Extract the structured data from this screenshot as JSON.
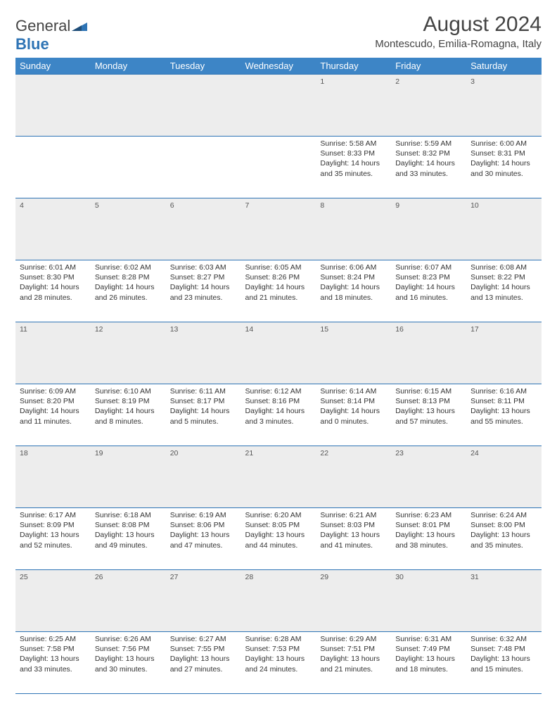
{
  "logo": {
    "part1": "General",
    "part2": "Blue"
  },
  "title": "August 2024",
  "location": "Montescudo, Emilia-Romagna, Italy",
  "header_bg": "#3d85c6",
  "columns": [
    "Sunday",
    "Monday",
    "Tuesday",
    "Wednesday",
    "Thursday",
    "Friday",
    "Saturday"
  ],
  "weeks": [
    {
      "nums": [
        "",
        "",
        "",
        "",
        "1",
        "2",
        "3"
      ],
      "cells": [
        "",
        "",
        "",
        "",
        "Sunrise: 5:58 AM\nSunset: 8:33 PM\nDaylight: 14 hours\nand 35 minutes.",
        "Sunrise: 5:59 AM\nSunset: 8:32 PM\nDaylight: 14 hours\nand 33 minutes.",
        "Sunrise: 6:00 AM\nSunset: 8:31 PM\nDaylight: 14 hours\nand 30 minutes."
      ]
    },
    {
      "nums": [
        "4",
        "5",
        "6",
        "7",
        "8",
        "9",
        "10"
      ],
      "cells": [
        "Sunrise: 6:01 AM\nSunset: 8:30 PM\nDaylight: 14 hours\nand 28 minutes.",
        "Sunrise: 6:02 AM\nSunset: 8:28 PM\nDaylight: 14 hours\nand 26 minutes.",
        "Sunrise: 6:03 AM\nSunset: 8:27 PM\nDaylight: 14 hours\nand 23 minutes.",
        "Sunrise: 6:05 AM\nSunset: 8:26 PM\nDaylight: 14 hours\nand 21 minutes.",
        "Sunrise: 6:06 AM\nSunset: 8:24 PM\nDaylight: 14 hours\nand 18 minutes.",
        "Sunrise: 6:07 AM\nSunset: 8:23 PM\nDaylight: 14 hours\nand 16 minutes.",
        "Sunrise: 6:08 AM\nSunset: 8:22 PM\nDaylight: 14 hours\nand 13 minutes."
      ]
    },
    {
      "nums": [
        "11",
        "12",
        "13",
        "14",
        "15",
        "16",
        "17"
      ],
      "cells": [
        "Sunrise: 6:09 AM\nSunset: 8:20 PM\nDaylight: 14 hours\nand 11 minutes.",
        "Sunrise: 6:10 AM\nSunset: 8:19 PM\nDaylight: 14 hours\nand 8 minutes.",
        "Sunrise: 6:11 AM\nSunset: 8:17 PM\nDaylight: 14 hours\nand 5 minutes.",
        "Sunrise: 6:12 AM\nSunset: 8:16 PM\nDaylight: 14 hours\nand 3 minutes.",
        "Sunrise: 6:14 AM\nSunset: 8:14 PM\nDaylight: 14 hours\nand 0 minutes.",
        "Sunrise: 6:15 AM\nSunset: 8:13 PM\nDaylight: 13 hours\nand 57 minutes.",
        "Sunrise: 6:16 AM\nSunset: 8:11 PM\nDaylight: 13 hours\nand 55 minutes."
      ]
    },
    {
      "nums": [
        "18",
        "19",
        "20",
        "21",
        "22",
        "23",
        "24"
      ],
      "cells": [
        "Sunrise: 6:17 AM\nSunset: 8:09 PM\nDaylight: 13 hours\nand 52 minutes.",
        "Sunrise: 6:18 AM\nSunset: 8:08 PM\nDaylight: 13 hours\nand 49 minutes.",
        "Sunrise: 6:19 AM\nSunset: 8:06 PM\nDaylight: 13 hours\nand 47 minutes.",
        "Sunrise: 6:20 AM\nSunset: 8:05 PM\nDaylight: 13 hours\nand 44 minutes.",
        "Sunrise: 6:21 AM\nSunset: 8:03 PM\nDaylight: 13 hours\nand 41 minutes.",
        "Sunrise: 6:23 AM\nSunset: 8:01 PM\nDaylight: 13 hours\nand 38 minutes.",
        "Sunrise: 6:24 AM\nSunset: 8:00 PM\nDaylight: 13 hours\nand 35 minutes."
      ]
    },
    {
      "nums": [
        "25",
        "26",
        "27",
        "28",
        "29",
        "30",
        "31"
      ],
      "cells": [
        "Sunrise: 6:25 AM\nSunset: 7:58 PM\nDaylight: 13 hours\nand 33 minutes.",
        "Sunrise: 6:26 AM\nSunset: 7:56 PM\nDaylight: 13 hours\nand 30 minutes.",
        "Sunrise: 6:27 AM\nSunset: 7:55 PM\nDaylight: 13 hours\nand 27 minutes.",
        "Sunrise: 6:28 AM\nSunset: 7:53 PM\nDaylight: 13 hours\nand 24 minutes.",
        "Sunrise: 6:29 AM\nSunset: 7:51 PM\nDaylight: 13 hours\nand 21 minutes.",
        "Sunrise: 6:31 AM\nSunset: 7:49 PM\nDaylight: 13 hours\nand 18 minutes.",
        "Sunrise: 6:32 AM\nSunset: 7:48 PM\nDaylight: 13 hours\nand 15 minutes."
      ]
    }
  ]
}
